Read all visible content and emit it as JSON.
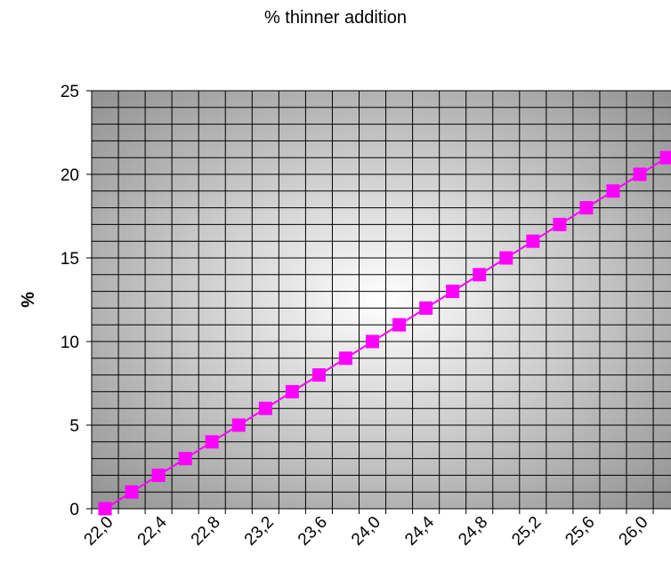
{
  "chart_data": {
    "type": "line",
    "title": "% thinner addition",
    "xlabel": "",
    "ylabel": "%",
    "x_tick_labels": [
      "22,0",
      "22,4",
      "22,8",
      "23,2",
      "23,6",
      "24,0",
      "24,4",
      "24,8",
      "25,2",
      "25,6",
      "26,0"
    ],
    "x": [
      22.0,
      22.2,
      22.4,
      22.6,
      22.8,
      23.0,
      23.2,
      23.4,
      23.6,
      23.8,
      24.0,
      24.2,
      24.4,
      24.6,
      24.8,
      25.0,
      25.2,
      25.4,
      25.6,
      25.8,
      26.0,
      26.2
    ],
    "ylim": [
      0,
      25
    ],
    "y_ticks": [
      0,
      5,
      10,
      15,
      20,
      25
    ],
    "series": [
      {
        "values": [
          0,
          1,
          2,
          3,
          4,
          5,
          6,
          7,
          8,
          9,
          10,
          11,
          12,
          13,
          14,
          15,
          16,
          17,
          18,
          19,
          20,
          21
        ]
      }
    ],
    "grid": true,
    "legend": "none",
    "colors": {
      "series": "#ff00ff",
      "grid": "#000000",
      "plot_center": "#ffffff",
      "plot_edge": "#9a9a9a"
    }
  }
}
